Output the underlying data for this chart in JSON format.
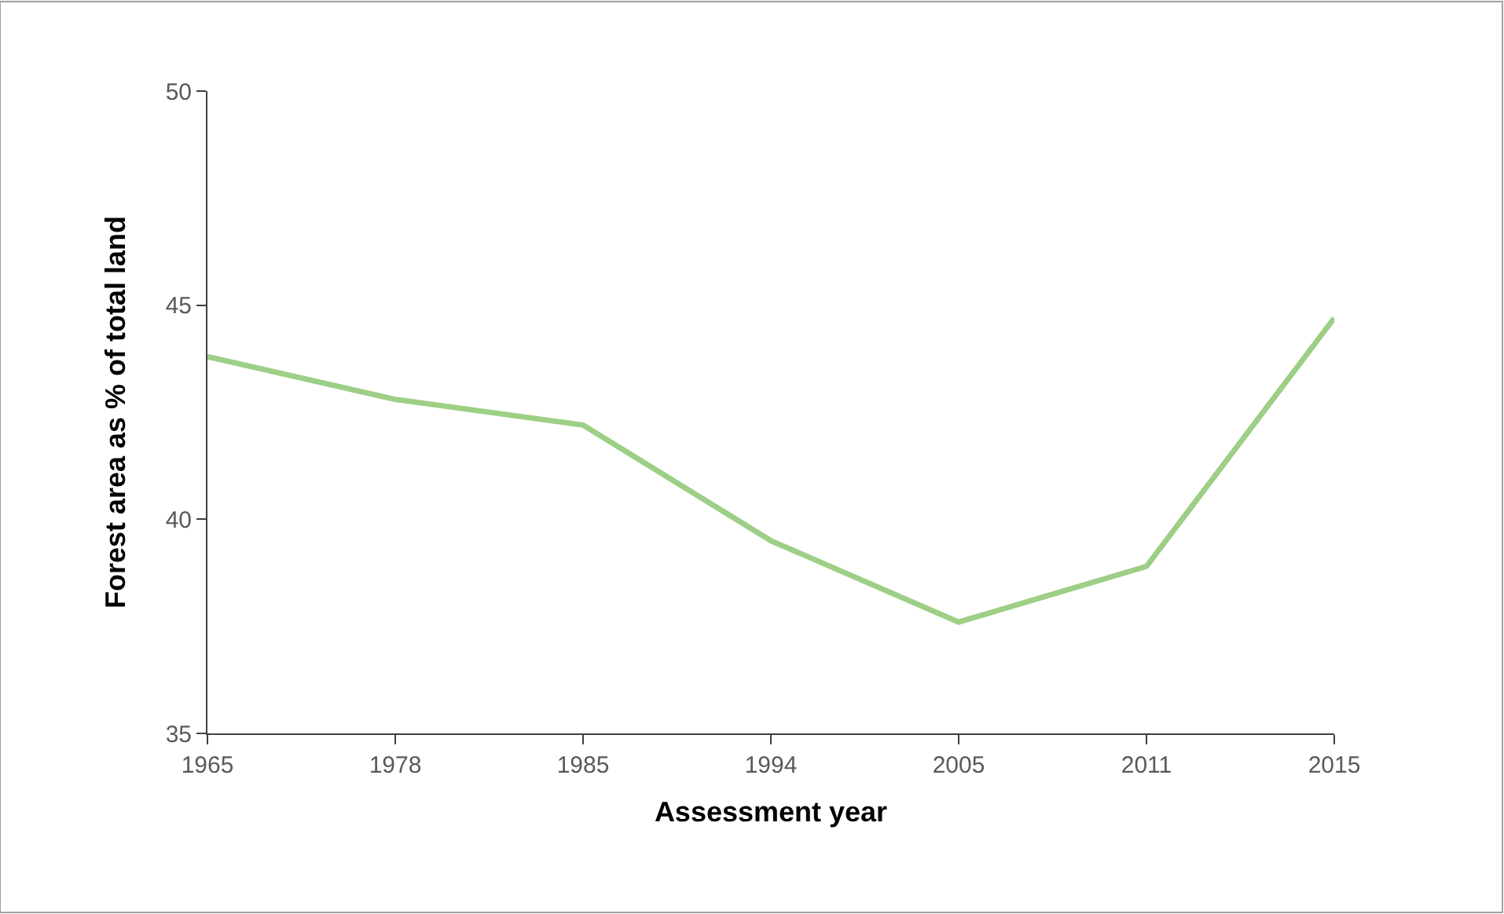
{
  "chart_data": {
    "type": "line",
    "xlabel": "Assessment year",
    "ylabel": "Forest area as % of total land",
    "categories": [
      "1965",
      "1978",
      "1985",
      "1994",
      "2005",
      "2011",
      "2015"
    ],
    "series": [
      {
        "color": "#9dcf86",
        "values": [
          43.8,
          42.8,
          42.2,
          39.5,
          37.6,
          38.9,
          44.7
        ]
      }
    ],
    "ylim": [
      35,
      50
    ],
    "yticks": [
      35,
      40,
      45,
      50
    ],
    "legend": false,
    "marker": "none",
    "line_style": "solid"
  }
}
